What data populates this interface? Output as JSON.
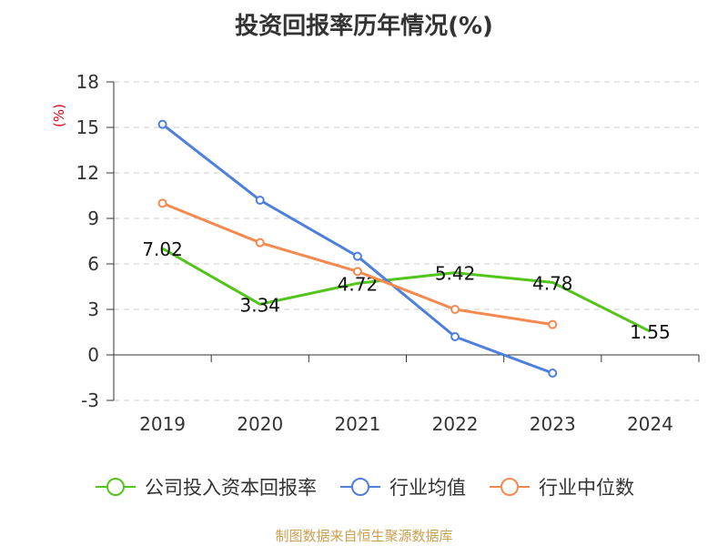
{
  "chart_data": {
    "type": "line",
    "title": "投资回报率历年情况(%)",
    "ylabel": "(%)",
    "xlabel": "",
    "categories": [
      "2019",
      "2020",
      "2021",
      "2022",
      "2023",
      "2024"
    ],
    "ylim": [
      -3,
      18
    ],
    "yticks": [
      -3,
      0,
      3,
      6,
      9,
      12,
      15,
      18
    ],
    "ytick_labels": [
      "-3",
      "0",
      "3",
      "6",
      "9",
      "12",
      "15",
      "18"
    ],
    "grid": true,
    "legend_position": "bottom",
    "series": [
      {
        "name": "公司投入资本回报率",
        "color": "#52c41a",
        "values": [
          7.02,
          3.34,
          4.72,
          5.42,
          4.78,
          1.55
        ],
        "labels": [
          "7.02",
          "3.34",
          "4.72",
          "5.42",
          "4.78",
          "1.55"
        ],
        "show_markers": false
      },
      {
        "name": "行业均值",
        "color": "#4e7fdb",
        "values": [
          15.2,
          10.2,
          6.5,
          1.2,
          -1.2,
          null
        ],
        "show_markers": true
      },
      {
        "name": "行业中位数",
        "color": "#f5894f",
        "values": [
          10.0,
          7.4,
          5.5,
          3.0,
          2.0,
          null
        ],
        "show_markers": true
      }
    ]
  },
  "source_note": "制图数据来自恒生聚源数据库"
}
